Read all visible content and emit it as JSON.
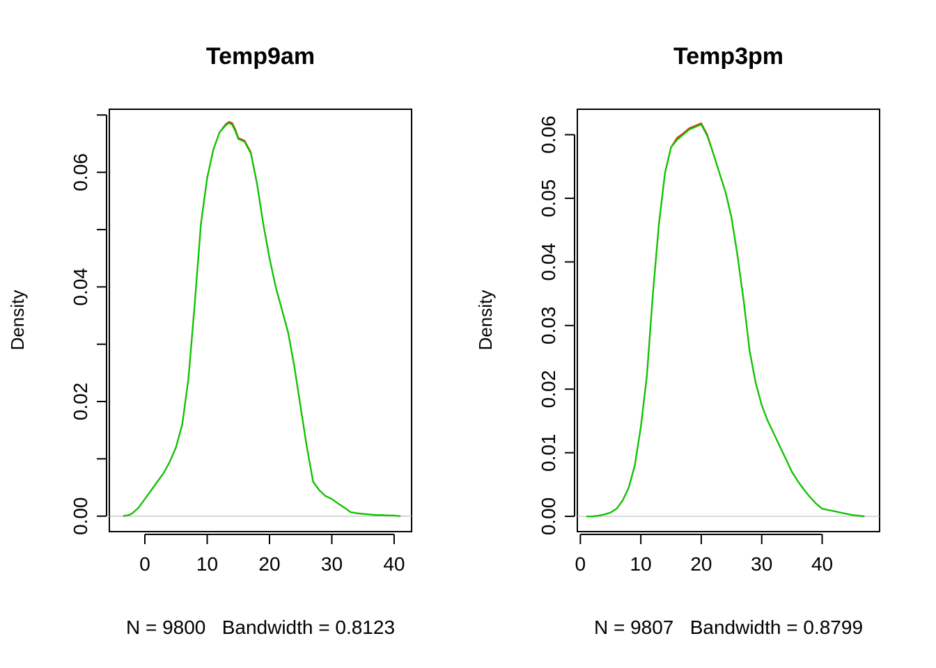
{
  "chart_data": [
    {
      "type": "line",
      "title": "Temp9am",
      "xlabel": "N = 9800   Bandwidth = 0.8123",
      "ylabel": "Density",
      "xlim": [
        -5.7,
        42.8
      ],
      "ylim": [
        -0.0027,
        0.071
      ],
      "x_ticks": [
        0,
        10,
        20,
        30,
        40
      ],
      "y_ticks": [
        0.0,
        0.01,
        0.02,
        0.03,
        0.04,
        0.05,
        0.06,
        0.07
      ],
      "y_tick_labels": [
        "0.00",
        "",
        "0.02",
        "",
        "0.04",
        "",
        "0.06",
        ""
      ],
      "baseline": 0,
      "grid": false,
      "colors": {
        "series_a": "#e03000",
        "series_b": "#00cc00",
        "baseline": "#bebebe"
      },
      "series": [
        {
          "color": "#e03000",
          "x": [
            -3.5,
            -2.5,
            -2,
            -1,
            0,
            1,
            2,
            3,
            4,
            5,
            6,
            7,
            8,
            9,
            10,
            11,
            12,
            13,
            13.5,
            14,
            14.5,
            15,
            16,
            17,
            18,
            19,
            20,
            21,
            22,
            23,
            24,
            25,
            26,
            27,
            28,
            29,
            30,
            31,
            32,
            33,
            34,
            35,
            36,
            37,
            38,
            39,
            40,
            41
          ],
          "y": [
            0.0,
            0.0002,
            0.0005,
            0.0015,
            0.003,
            0.0045,
            0.006,
            0.0075,
            0.0095,
            0.012,
            0.016,
            0.024,
            0.037,
            0.051,
            0.059,
            0.064,
            0.067,
            0.0684,
            0.0688,
            0.0686,
            0.0675,
            0.066,
            0.0655,
            0.0635,
            0.058,
            0.051,
            0.045,
            0.04,
            0.036,
            0.032,
            0.026,
            0.019,
            0.012,
            0.006,
            0.0045,
            0.0035,
            0.003,
            0.0022,
            0.0015,
            0.0007,
            0.0005,
            0.0004,
            0.0003,
            0.0002,
            0.0002,
            0.0001,
            0.0001,
            0.0
          ]
        },
        {
          "color": "#00cc00",
          "x": [
            -3.5,
            -2.5,
            -2,
            -1,
            0,
            1,
            2,
            3,
            4,
            5,
            6,
            7,
            8,
            9,
            10,
            11,
            12,
            13,
            13.5,
            14,
            14.5,
            15,
            16,
            17,
            18,
            19,
            20,
            21,
            22,
            23,
            24,
            25,
            26,
            27,
            28,
            29,
            30,
            31,
            32,
            33,
            34,
            35,
            36,
            37,
            38,
            39,
            40,
            41
          ],
          "y": [
            0.0,
            0.0002,
            0.0005,
            0.0015,
            0.003,
            0.0045,
            0.006,
            0.0075,
            0.0095,
            0.012,
            0.016,
            0.024,
            0.037,
            0.051,
            0.059,
            0.064,
            0.067,
            0.0682,
            0.0686,
            0.0683,
            0.0672,
            0.0658,
            0.0653,
            0.0633,
            0.058,
            0.051,
            0.045,
            0.04,
            0.036,
            0.032,
            0.026,
            0.019,
            0.012,
            0.006,
            0.0045,
            0.0035,
            0.003,
            0.0022,
            0.0015,
            0.0007,
            0.0005,
            0.0004,
            0.0003,
            0.0002,
            0.0002,
            0.0001,
            0.0001,
            0.0
          ]
        }
      ]
    },
    {
      "type": "line",
      "title": "Temp3pm",
      "xlabel": "N = 9807   Bandwidth = 0.8799",
      "ylabel": "Density",
      "xlim": [
        -0.5,
        49.5
      ],
      "ylim": [
        -0.0024,
        0.064
      ],
      "x_ticks": [
        0,
        10,
        20,
        30,
        40
      ],
      "y_ticks": [
        0.0,
        0.01,
        0.02,
        0.03,
        0.04,
        0.05,
        0.06
      ],
      "y_tick_labels": [
        "0.00",
        "0.01",
        "0.02",
        "0.03",
        "0.04",
        "0.05",
        "0.06"
      ],
      "baseline": 0,
      "grid": false,
      "colors": {
        "series_a": "#e03000",
        "series_b": "#00cc00",
        "baseline": "#bebebe"
      },
      "series": [
        {
          "color": "#e03000",
          "x": [
            1,
            2,
            3,
            4,
            5,
            6,
            7,
            8,
            9,
            10,
            11,
            12,
            13,
            14,
            15,
            16,
            17,
            18,
            19,
            20,
            21,
            22,
            23,
            24,
            25,
            26,
            27,
            28,
            29,
            30,
            31,
            32,
            33,
            34,
            35,
            36,
            37,
            38,
            39,
            40,
            41,
            42,
            43,
            44,
            45,
            46,
            47
          ],
          "y": [
            0.0,
            0.0,
            0.0001,
            0.0003,
            0.0006,
            0.0012,
            0.0025,
            0.0045,
            0.008,
            0.014,
            0.022,
            0.035,
            0.046,
            0.054,
            0.058,
            0.0595,
            0.0602,
            0.061,
            0.0614,
            0.0618,
            0.06,
            0.057,
            0.054,
            0.051,
            0.047,
            0.041,
            0.034,
            0.026,
            0.021,
            0.0175,
            0.015,
            0.013,
            0.011,
            0.009,
            0.007,
            0.0055,
            0.0042,
            0.003,
            0.002,
            0.0012,
            0.001,
            0.0008,
            0.0006,
            0.0004,
            0.0002,
            0.0001,
            0.0
          ]
        },
        {
          "color": "#00cc00",
          "x": [
            1,
            2,
            3,
            4,
            5,
            6,
            7,
            8,
            9,
            10,
            11,
            12,
            13,
            14,
            15,
            16,
            17,
            18,
            19,
            20,
            21,
            22,
            23,
            24,
            25,
            26,
            27,
            28,
            29,
            30,
            31,
            32,
            33,
            34,
            35,
            36,
            37,
            38,
            39,
            40,
            41,
            42,
            43,
            44,
            45,
            46,
            47
          ],
          "y": [
            0.0,
            0.0,
            0.0001,
            0.0003,
            0.0006,
            0.0012,
            0.0025,
            0.0045,
            0.008,
            0.014,
            0.022,
            0.035,
            0.046,
            0.054,
            0.058,
            0.0592,
            0.06,
            0.0608,
            0.0612,
            0.0616,
            0.0598,
            0.057,
            0.054,
            0.051,
            0.047,
            0.041,
            0.034,
            0.026,
            0.021,
            0.0175,
            0.015,
            0.013,
            0.011,
            0.009,
            0.007,
            0.0055,
            0.0042,
            0.003,
            0.002,
            0.0012,
            0.001,
            0.0008,
            0.0006,
            0.0004,
            0.0002,
            0.0001,
            0.0
          ]
        }
      ]
    }
  ]
}
